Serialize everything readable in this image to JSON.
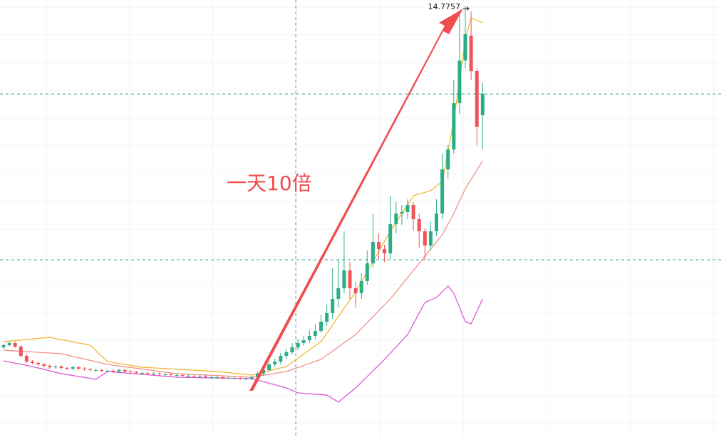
{
  "chart_data": {
    "type": "candlestick",
    "annotation": "一天10倍",
    "high_label": 14.7757,
    "ylim": [
      -0.35,
      15
    ],
    "up_color": "#2bae86",
    "down_color": "#ef5457",
    "open": [
      2.8,
      2.875,
      2.95,
      2.825,
      2.5,
      2.3,
      2.25,
      2.2,
      2.15,
      2.1,
      2.125,
      2.075,
      2.05,
      2.1,
      2.05,
      2.025,
      2.0,
      2.0,
      1.975,
      1.975,
      1.95,
      2.0,
      1.95,
      1.925,
      1.9,
      1.9,
      1.875,
      1.875,
      1.85,
      1.85,
      1.825,
      1.825,
      1.8,
      1.8,
      1.775,
      1.775,
      1.75,
      1.75,
      1.75,
      1.725,
      1.725,
      1.725,
      1.7,
      1.7,
      1.75,
      1.875,
      2.0,
      2.2,
      2.3,
      2.5,
      2.625,
      2.8,
      2.95,
      3.05,
      3.2,
      3.375,
      3.7,
      4.0,
      4.5,
      4.875,
      5.5,
      4.875,
      4.7,
      5.125,
      5.75,
      6.5,
      6.25,
      6.1,
      7.125,
      7.5,
      7.55,
      7.8,
      7.3,
      6.875,
      6.375,
      6.875,
      7.5,
      9.05,
      9.75,
      11.375,
      12.875,
      13.75,
      12.5,
      10.95
    ],
    "high": [
      2.925,
      3.0,
      3.0,
      2.875,
      2.55,
      2.35,
      2.3,
      2.25,
      2.2,
      2.175,
      2.175,
      2.125,
      2.15,
      2.15,
      2.1,
      2.075,
      2.05,
      2.05,
      2.025,
      2.025,
      2.05,
      2.05,
      2.0,
      1.975,
      1.95,
      1.95,
      1.925,
      1.925,
      1.9,
      1.9,
      1.875,
      1.875,
      1.85,
      1.85,
      1.825,
      1.825,
      1.8,
      1.8,
      1.8,
      1.775,
      1.775,
      1.775,
      1.75,
      1.8,
      1.95,
      2.05,
      2.3,
      2.4,
      2.6,
      2.75,
      2.95,
      3.1,
      3.2,
      3.4,
      3.6,
      3.95,
      4.3,
      5.6,
      5.9,
      6.875,
      5.8,
      5.1,
      5.4,
      6.2,
      7.5,
      6.8,
      6.4,
      8.125,
      7.9,
      7.8,
      8.0,
      7.9,
      7.5,
      7.0,
      7.2,
      8.0,
      9.6,
      9.9,
      12.2,
      14.6,
      14.7757,
      14.6,
      12.6,
      12.1
    ],
    "low": [
      2.75,
      2.825,
      2.775,
      2.45,
      2.25,
      2.2,
      2.15,
      2.1,
      2.05,
      2.05,
      2.025,
      2.0,
      2.0,
      2.0,
      1.975,
      1.95,
      1.95,
      1.925,
      1.925,
      1.9,
      1.9,
      1.9,
      1.875,
      1.85,
      1.85,
      1.825,
      1.825,
      1.8,
      1.8,
      1.775,
      1.775,
      1.75,
      1.75,
      1.725,
      1.725,
      1.7,
      1.7,
      1.7,
      1.675,
      1.675,
      1.675,
      1.65,
      1.65,
      1.65,
      1.7,
      1.8,
      1.95,
      2.1,
      2.2,
      2.4,
      2.55,
      2.7,
      2.85,
      2.95,
      3.1,
      3.3,
      3.55,
      3.8,
      4.2,
      4.7,
      4.5,
      4.2,
      4.5,
      5.0,
      5.6,
      5.9,
      5.8,
      5.9,
      6.8,
      7.1,
      7.3,
      6.9,
      6.3,
      5.875,
      6.2,
      6.7,
      7.3,
      8.7,
      9.6,
      11.0,
      12.6,
      12.2,
      9.9,
      9.75
    ],
    "close": [
      2.875,
      2.95,
      2.825,
      2.5,
      2.3,
      2.25,
      2.2,
      2.15,
      2.1,
      2.125,
      2.075,
      2.05,
      2.1,
      2.05,
      2.025,
      2.0,
      2.0,
      1.975,
      1.975,
      1.95,
      2.0,
      1.95,
      1.925,
      1.9,
      1.9,
      1.875,
      1.875,
      1.85,
      1.85,
      1.825,
      1.825,
      1.8,
      1.8,
      1.775,
      1.775,
      1.75,
      1.75,
      1.75,
      1.725,
      1.725,
      1.725,
      1.7,
      1.7,
      1.75,
      1.875,
      2.0,
      2.2,
      2.3,
      2.5,
      2.625,
      2.8,
      2.95,
      3.05,
      3.2,
      3.375,
      3.7,
      4.0,
      4.5,
      4.875,
      5.5,
      4.875,
      4.7,
      5.125,
      5.75,
      6.5,
      6.25,
      6.1,
      7.125,
      7.5,
      7.55,
      7.8,
      7.3,
      6.875,
      6.375,
      6.875,
      7.5,
      9.05,
      9.75,
      11.375,
      12.875,
      13.8,
      12.5,
      10.55,
      11.7
    ],
    "series": [
      {
        "color": "#f0b323",
        "x": [
          0,
          8,
          15,
          18,
          24,
          37,
          43,
          49,
          55,
          61,
          67,
          71,
          74,
          76,
          78,
          80,
          81,
          83
        ],
        "values": [
          3.0,
          3.15,
          2.875,
          2.3,
          2.1,
          1.95,
          1.825,
          2.125,
          3.0,
          4.75,
          6.875,
          8.125,
          8.3,
          8.625,
          10.75,
          13.625,
          14.375,
          14.2
        ]
      },
      {
        "color": "#f28b82",
        "x": [
          0,
          10,
          18,
          30,
          43,
          49,
          55,
          61,
          67,
          71,
          74,
          76,
          78,
          80,
          83
        ],
        "values": [
          2.7,
          2.575,
          2.2,
          1.875,
          1.75,
          1.95,
          2.375,
          3.25,
          4.5,
          5.5,
          6.25,
          6.75,
          7.5,
          8.375,
          9.35
        ]
      },
      {
        "color": "#d94fd4",
        "x": [
          0,
          5,
          10,
          16,
          18,
          30,
          43,
          49,
          51,
          56,
          58,
          61,
          66,
          70,
          73,
          75,
          77,
          78,
          80,
          81,
          83
        ],
        "values": [
          2.325,
          2.125,
          1.875,
          1.675,
          1.95,
          1.75,
          1.7,
          1.375,
          1.2,
          1.125,
          0.875,
          1.375,
          2.375,
          3.25,
          4.375,
          4.55,
          4.95,
          4.7,
          3.7,
          3.625,
          4.5
        ]
      }
    ]
  }
}
